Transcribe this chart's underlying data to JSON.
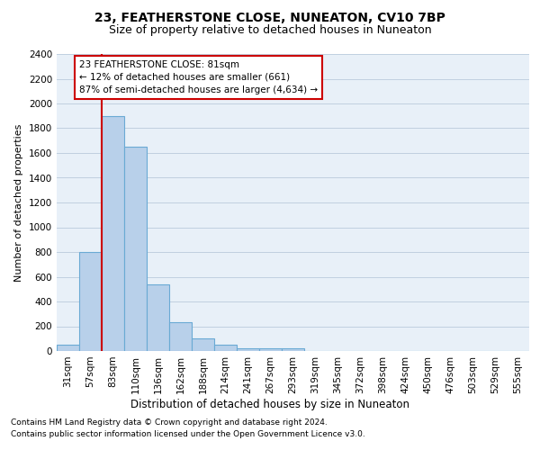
{
  "title_line1": "23, FEATHERSTONE CLOSE, NUNEATON, CV10 7BP",
  "title_line2": "Size of property relative to detached houses in Nuneaton",
  "xlabel": "Distribution of detached houses by size in Nuneaton",
  "ylabel": "Number of detached properties",
  "categories": [
    "31sqm",
    "57sqm",
    "83sqm",
    "110sqm",
    "136sqm",
    "162sqm",
    "188sqm",
    "214sqm",
    "241sqm",
    "267sqm",
    "293sqm",
    "319sqm",
    "345sqm",
    "372sqm",
    "398sqm",
    "424sqm",
    "450sqm",
    "476sqm",
    "503sqm",
    "529sqm",
    "555sqm"
  ],
  "values": [
    50,
    800,
    1900,
    1650,
    540,
    230,
    105,
    50,
    25,
    20,
    20,
    0,
    0,
    0,
    0,
    0,
    0,
    0,
    0,
    0,
    0
  ],
  "bar_color": "#b8d0ea",
  "bar_edge_color": "#6aaad4",
  "bar_edge_width": 0.8,
  "grid_color": "#c0d0e0",
  "background_color": "#e8f0f8",
  "red_line_x": 1.5,
  "red_line_color": "#cc0000",
  "annotation_text": "23 FEATHERSTONE CLOSE: 81sqm\n← 12% of detached houses are smaller (661)\n87% of semi-detached houses are larger (4,634) →",
  "annotation_box_color": "white",
  "annotation_box_edge": "#cc0000",
  "ylim": [
    0,
    2400
  ],
  "yticks": [
    0,
    200,
    400,
    600,
    800,
    1000,
    1200,
    1400,
    1600,
    1800,
    2000,
    2200,
    2400
  ],
  "footer_line1": "Contains HM Land Registry data © Crown copyright and database right 2024.",
  "footer_line2": "Contains public sector information licensed under the Open Government Licence v3.0.",
  "title1_fontsize": 10,
  "title2_fontsize": 9,
  "xlabel_fontsize": 8.5,
  "ylabel_fontsize": 8,
  "tick_fontsize": 7.5,
  "annotation_fontsize": 7.5,
  "footer_fontsize": 6.5
}
